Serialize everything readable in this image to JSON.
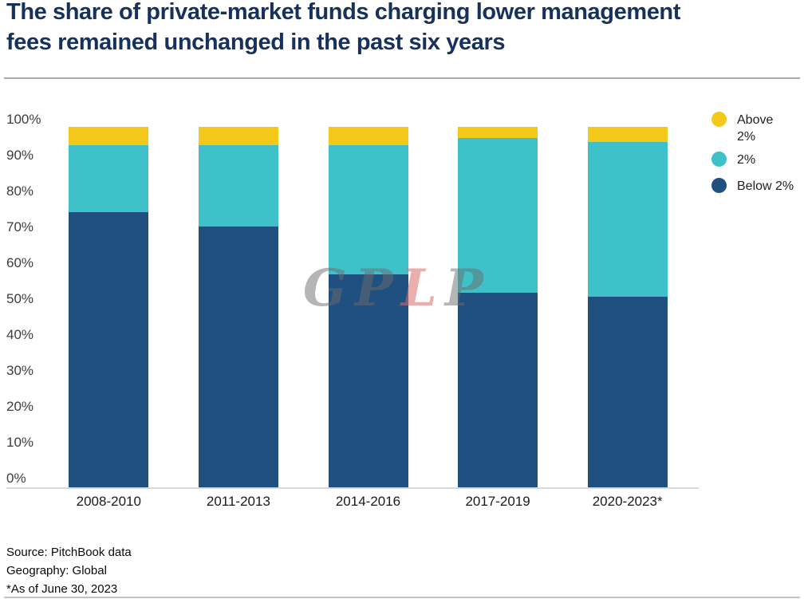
{
  "header": {
    "title_lines": [
      "The share of private-market funds charging lower management",
      "fees remained unchanged in the past six years"
    ]
  },
  "chart_data": {
    "type": "bar",
    "stacked": true,
    "title": "The share of private-market funds charging lower management fees remained unchanged in the past six years",
    "categories": [
      "2008-2010",
      "2011-2013",
      "2014-2016",
      "2017-2019",
      "2020-2023*"
    ],
    "series": [
      {
        "name": "Below 2%",
        "color": "#1F5080",
        "values": [
          75,
          71,
          58,
          53,
          52
        ]
      },
      {
        "name": "2%",
        "color": "#3EC1C9",
        "values": [
          18,
          22,
          35,
          42,
          42
        ]
      },
      {
        "name": "Above 2%",
        "color": "#F5C91B",
        "values": [
          5,
          5,
          5,
          3,
          4
        ]
      }
    ],
    "ylabel": "",
    "xlabel": "",
    "ylim": [
      0,
      100
    ],
    "y_ticks": [
      "0%",
      "10%",
      "20%",
      "30%",
      "40%",
      "50%",
      "60%",
      "70%",
      "80%",
      "90%",
      "100%"
    ],
    "grid": false,
    "legend": {
      "position": "top-right",
      "entries": [
        {
          "label_lines": [
            "Above",
            "2%"
          ],
          "color": "#F5C91B"
        },
        {
          "label_lines": [
            "2%"
          ],
          "color": "#3EC1C9"
        },
        {
          "label_lines": [
            "Below 2%"
          ],
          "color": "#1F5080"
        }
      ]
    }
  },
  "watermark": {
    "letters": [
      "G",
      "P",
      "L",
      "P"
    ]
  },
  "footer": {
    "lines": [
      "Source: PitchBook data",
      "Geography: Global",
      "*As of June 30, 2023"
    ]
  },
  "colors": {
    "title": "#16325C",
    "below_2pct": "#1F5080",
    "at_2pct": "#3EC1C9",
    "above_2pct": "#F5C91B",
    "divider": "#ababab",
    "axis_text": "#3c3c3c"
  }
}
